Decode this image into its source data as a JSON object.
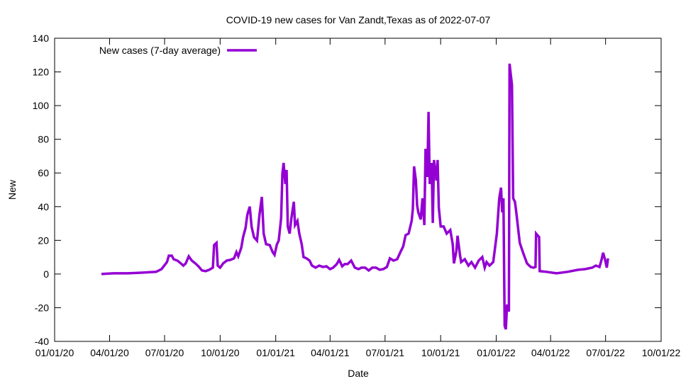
{
  "chart_data": {
    "type": "line",
    "title": "COVID-19 new cases for Van Zandt,Texas as of 2022-07-07",
    "xlabel": "Date",
    "ylabel": "New",
    "ylim": [
      -40,
      140
    ],
    "yticks": [
      -40,
      -20,
      0,
      20,
      40,
      60,
      80,
      100,
      120,
      140
    ],
    "x_unit": "days since 01/01/20",
    "xlim": [
      0,
      1004
    ],
    "xticks": [
      {
        "day": 0,
        "label": "01/01/20"
      },
      {
        "day": 91,
        "label": "04/01/20"
      },
      {
        "day": 182,
        "label": "07/01/20"
      },
      {
        "day": 274,
        "label": "10/01/20"
      },
      {
        "day": 366,
        "label": "01/01/21"
      },
      {
        "day": 456,
        "label": "04/01/21"
      },
      {
        "day": 547,
        "label": "07/01/21"
      },
      {
        "day": 639,
        "label": "10/01/21"
      },
      {
        "day": 731,
        "label": "01/01/22"
      },
      {
        "day": 821,
        "label": "04/01/22"
      },
      {
        "day": 912,
        "label": "07/01/22"
      },
      {
        "day": 1004,
        "label": "10/01/22"
      }
    ],
    "grid": false,
    "legend_position": "top-left",
    "series": [
      {
        "name": "New cases (7-day average)",
        "color": "#9400d3",
        "x": [
          77.5,
          97.5,
          121,
          144,
          168,
          177,
          186,
          189,
          194,
          197,
          203,
          209,
          213,
          217,
          222,
          227,
          233,
          238,
          244,
          250,
          256,
          262,
          264,
          268,
          270,
          274,
          279,
          285,
          291,
          297,
          301,
          304,
          309,
          312,
          316,
          319,
          323,
          326,
          330,
          335,
          339,
          343,
          346,
          350,
          356,
          361,
          364,
          368,
          371,
          375,
          377,
          379,
          382,
          384,
          386,
          389,
          392,
          396,
          398,
          402,
          405,
          409,
          412,
          417,
          422,
          426,
          432,
          438,
          444,
          450,
          456,
          461,
          467,
          471,
          476,
          480,
          485,
          491,
          497,
          503,
          508,
          514,
          520,
          526,
          532,
          538,
          544,
          550,
          555,
          561,
          567,
          573,
          577,
          581,
          586,
          591,
          593,
          595,
          598,
          600,
          602,
          606,
          609,
          612,
          614,
          617,
          619,
          621,
          624,
          626,
          628,
          632,
          634,
          636,
          639,
          644,
          649,
          655,
          659,
          661,
          665,
          667,
          671,
          673,
          679,
          685,
          690,
          696,
          702,
          708,
          712,
          715,
          720,
          726,
          732,
          736,
          739,
          741,
          743,
          745,
          747,
          749,
          752,
          753,
          755,
          757,
          759,
          762,
          764,
          770,
          776,
          782,
          788,
          793,
          796,
          797,
          802,
          803,
          814,
          831,
          849,
          867,
          878,
          890,
          896,
          902,
          905,
          908,
          911,
          914,
          916
        ],
        "values": [
          0,
          0.4,
          0.4,
          0.8,
          1.3,
          2.9,
          7.1,
          10.9,
          10.9,
          8.8,
          8.0,
          6.3,
          5.0,
          6.3,
          10.5,
          8.0,
          6.3,
          4.6,
          2.1,
          1.7,
          2.5,
          3.8,
          17.2,
          18.5,
          5.0,
          3.8,
          6.3,
          8.0,
          8.4,
          9.3,
          13.0,
          10.5,
          15.6,
          21.9,
          27.3,
          35.3,
          40.0,
          28.2,
          21.9,
          19.8,
          34.9,
          45.8,
          24.0,
          17.7,
          17.2,
          13.0,
          11.4,
          17.7,
          19.8,
          33.2,
          59.7,
          66.0,
          53.4,
          61.8,
          28.2,
          24.0,
          33.2,
          42.9,
          29.0,
          31.5,
          24.0,
          17.7,
          10.1,
          9.3,
          8.0,
          5.0,
          3.8,
          5.0,
          4.2,
          4.6,
          2.9,
          3.8,
          5.9,
          8.4,
          4.6,
          5.9,
          5.9,
          8.0,
          3.8,
          2.9,
          3.8,
          3.8,
          2.1,
          3.8,
          3.8,
          2.5,
          2.9,
          4.2,
          9.3,
          8.0,
          8.8,
          13.5,
          16.4,
          23.1,
          24.0,
          31.5,
          38.7,
          63.9,
          55.5,
          40.8,
          36.6,
          32.4,
          45.0,
          29.0,
          74.4,
          57.6,
          96.3,
          53.4,
          66.0,
          30.3,
          67.7,
          55.5,
          67.7,
          39.5,
          28.2,
          28.2,
          24.0,
          26.1,
          17.7,
          6.3,
          13.5,
          22.7,
          11.4,
          7.1,
          8.8,
          5.0,
          7.1,
          3.8,
          8.0,
          10.1,
          3.8,
          7.1,
          5.0,
          7.1,
          24.0,
          45.0,
          51.3,
          36.6,
          45.0,
          -30.7,
          -32.8,
          -18.1,
          -22.3,
          124.9,
          118.6,
          112.3,
          45.0,
          42.9,
          37.4,
          18.5,
          12.2,
          6.3,
          4.2,
          3.8,
          4.2,
          24.0,
          21.9,
          1.7,
          1.3,
          0.4,
          1.3,
          2.5,
          2.9,
          3.8,
          5.0,
          4.2,
          8.0,
          12.6,
          8.8,
          3.8,
          9.3
        ]
      }
    ]
  }
}
